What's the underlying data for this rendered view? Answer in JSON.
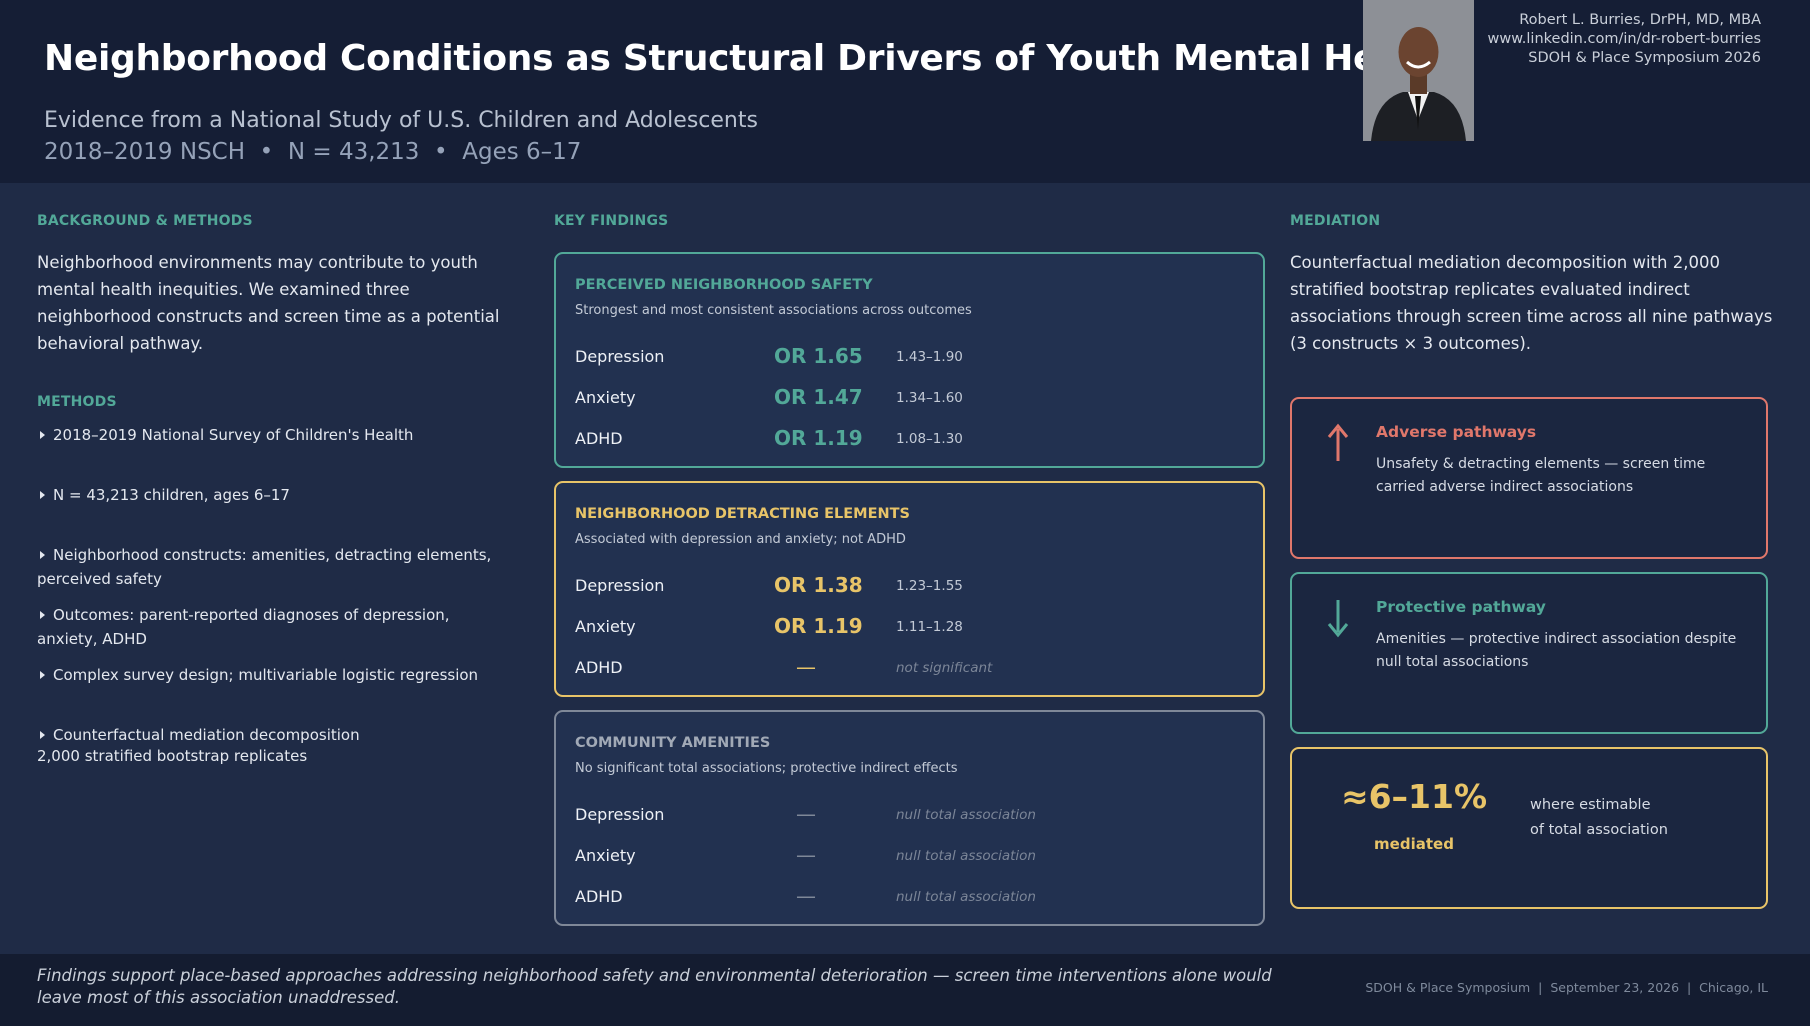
{
  "header": {
    "title": "Neighborhood Conditions as Structural Drivers of Youth Mental Health",
    "subtitle": "Evidence from a National Study of U.S. Children and Adolescents",
    "study_line": "2018–2019 NSCH  •  N = 43,213  •  Ages 6–17",
    "author": {
      "name": "Robert L. Burries, DrPH, MD, MBA",
      "linkedin": "www.linkedin.com/in/dr-robert-burries",
      "event": "SDOH & Place Symposium 2026"
    }
  },
  "background": {
    "heading": "BACKGROUND & METHODS",
    "text": "Neighborhood environments may contribute to youth mental health inequities. We examined three neighborhood constructs and screen time as a potential behavioral pathway."
  },
  "methods": {
    "heading": "METHODS",
    "items": [
      "2018–2019 National Survey of Children's Health",
      "N = 43,213 children, ages 6–17",
      "Neighborhood constructs: amenities, detracting elements, perceived safety",
      "Outcomes: parent-reported diagnoses of depression, anxiety, ADHD",
      "Complex survey design; multivariable logistic regression",
      "Counterfactual mediation decomposition"
    ],
    "note": "2,000 stratified bootstrap replicates"
  },
  "key_findings": {
    "heading": "KEY FINDINGS",
    "cards": [
      {
        "title": "PERCEIVED NEIGHBORHOOD SAFETY",
        "subtitle": "Strongest and most consistent associations across outcomes",
        "rows": [
          {
            "outcome": "Depression",
            "or": "OR 1.65",
            "ci": "1.43–1.90"
          },
          {
            "outcome": "Anxiety",
            "or": "OR 1.47",
            "ci": "1.34–1.60"
          },
          {
            "outcome": "ADHD",
            "or": "OR 1.19",
            "ci": "1.08–1.30"
          }
        ]
      },
      {
        "title": "NEIGHBORHOOD DETRACTING ELEMENTS",
        "subtitle": "Associated with depression and anxiety; not ADHD",
        "rows": [
          {
            "outcome": "Depression",
            "or": "OR 1.38",
            "ci": "1.23–1.55"
          },
          {
            "outcome": "Anxiety",
            "or": "OR 1.19",
            "ci": "1.11–1.28"
          },
          {
            "outcome": "ADHD",
            "or": "—",
            "ci": "not significant"
          }
        ]
      },
      {
        "title": "COMMUNITY AMENITIES",
        "subtitle": "No significant total associations; protective indirect effects",
        "rows": [
          {
            "outcome": "Depression",
            "or": "—",
            "ci": "null total association"
          },
          {
            "outcome": "Anxiety",
            "or": "—",
            "ci": "null total association"
          },
          {
            "outcome": "ADHD",
            "or": "—",
            "ci": "null total association"
          }
        ]
      }
    ]
  },
  "mediation": {
    "heading": "MEDIATION",
    "text": "Counterfactual mediation decomposition with 2,000 stratified bootstrap replicates evaluated indirect associations through screen time across all nine pathways (3 constructs × 3 outcomes).",
    "adverse": {
      "title": "Adverse pathways",
      "text": "Unsafety & detracting elements — screen time carried adverse indirect associations"
    },
    "protective": {
      "title": "Protective pathway",
      "text": "Amenities — protective indirect association despite null total associations"
    },
    "estimate": {
      "value": "≈6–11%",
      "label": "mediated",
      "note_lines": [
        "where estimable",
        "of total association"
      ]
    }
  },
  "footer": {
    "message": "Findings support place-based approaches addressing neighborhood safety and environmental deterioration — screen time interventions alone would leave most of this association unaddressed.",
    "info": "SDOH & Place Symposium  |  September 23, 2026  |  Chicago, IL"
  }
}
